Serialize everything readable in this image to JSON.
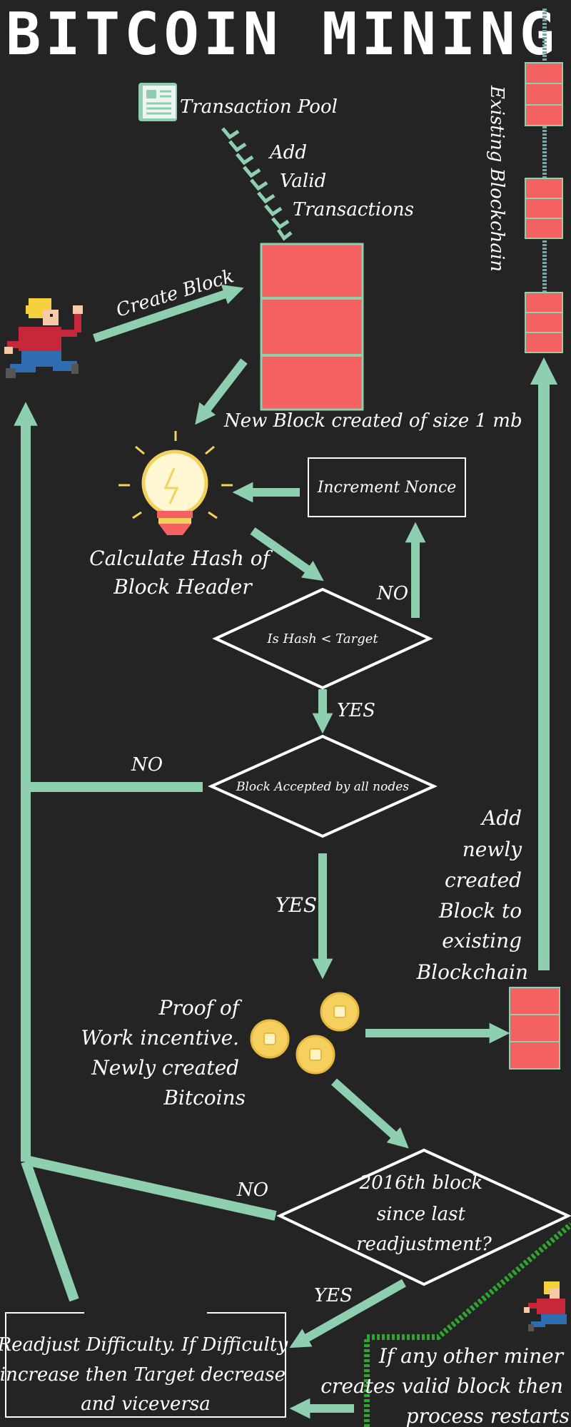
{
  "title": "BITCOIN MINING",
  "labels": {
    "transaction_pool": "Transaction Pool",
    "add_valid": [
      "Add",
      "Valid",
      "Transactions"
    ],
    "existing_blockchain": "Existing Blockchain",
    "create_block": "Create Block",
    "new_block": "New Block created of size 1 mb",
    "increment_nonce": "Increment Nonce",
    "calculate_hash": [
      "Calculate Hash of",
      "Block Header"
    ],
    "no_1": "NO",
    "is_hash": "Is Hash < Target",
    "yes_1": "YES",
    "no_2": "NO",
    "block_accepted": "Block Accepted by all nodes",
    "yes_2": "YES",
    "add_new_block": [
      "Add",
      "newly",
      "created",
      "Block to",
      "existing",
      "Blockchain"
    ],
    "pow_incentive": [
      "Proof of",
      "Work incentive.",
      "Newly created",
      "Bitcoins"
    ],
    "block_2016": [
      "2016th block",
      "since last",
      "readjustment?"
    ],
    "no_3": "NO",
    "yes_3": "YES",
    "readjust": [
      "Readjust Difficulty. If Difficulty",
      "increase then Target decrease",
      "and viceversa"
    ],
    "other_miner": [
      "If any other miner",
      "creates valid block then",
      "process restarts"
    ]
  },
  "colors": {
    "background": "#242424",
    "arrow": "#8ecfb0",
    "block": "#f36161",
    "block_border": "#8ecfb0",
    "coin": "#f5d05e",
    "bulb": "#fff3c7",
    "text": "#ffffff",
    "green_dashed": "#2fa52f"
  },
  "icons": [
    "newspaper-icon",
    "miner-character-icon",
    "lightbulb-icon",
    "coin-icon",
    "miner-small-icon"
  ]
}
